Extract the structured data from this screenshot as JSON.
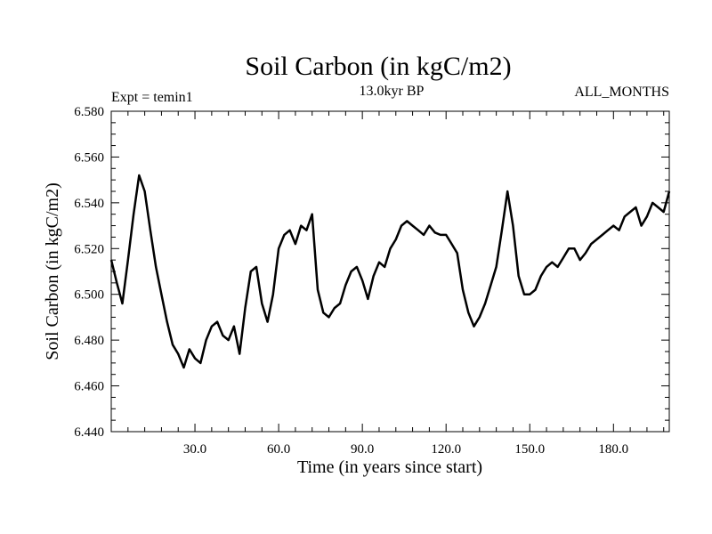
{
  "chart_data": {
    "type": "line",
    "title": "Soil Carbon (in kgC/m2)",
    "subtitle": "13.0kyr BP",
    "left_note": "Expt = temin1",
    "right_note": "ALL_MONTHS",
    "xlabel": "Time (in years since start)",
    "ylabel": "Soil Carbon (in kgC/m2)",
    "xlim": [
      0,
      200
    ],
    "ylim": [
      6.44,
      6.58
    ],
    "xticks": [
      30,
      60,
      90,
      120,
      150,
      180
    ],
    "xtick_labels": [
      "30.0",
      "60.0",
      "90.0",
      "120.0",
      "150.0",
      "180.0"
    ],
    "yticks": [
      6.44,
      6.46,
      6.48,
      6.5,
      6.52,
      6.54,
      6.56,
      6.58
    ],
    "ytick_labels": [
      "6.440",
      "6.460",
      "6.480",
      "6.500",
      "6.520",
      "6.540",
      "6.560",
      "6.580"
    ],
    "series": [
      {
        "name": "Soil Carbon",
        "color": "#000000",
        "x": [
          0,
          2,
          4,
          6,
          8,
          10,
          12,
          14,
          16,
          18,
          20,
          22,
          24,
          26,
          28,
          30,
          32,
          34,
          36,
          38,
          40,
          42,
          44,
          46,
          48,
          50,
          52,
          54,
          56,
          58,
          60,
          62,
          64,
          66,
          68,
          70,
          72,
          74,
          76,
          78,
          80,
          82,
          84,
          86,
          88,
          90,
          92,
          94,
          96,
          98,
          100,
          102,
          104,
          106,
          108,
          110,
          112,
          114,
          116,
          118,
          120,
          122,
          124,
          126,
          128,
          130,
          132,
          134,
          136,
          138,
          140,
          142,
          144,
          146,
          148,
          150,
          152,
          154,
          156,
          158,
          160,
          162,
          164,
          166,
          168,
          170,
          172,
          174,
          176,
          178,
          180,
          182,
          184,
          186,
          188,
          190,
          192,
          194,
          196,
          198,
          200
        ],
        "values": [
          6.515,
          6.505,
          6.496,
          6.515,
          6.535,
          6.552,
          6.545,
          6.528,
          6.512,
          6.5,
          6.488,
          6.478,
          6.474,
          6.468,
          6.476,
          6.472,
          6.47,
          6.48,
          6.486,
          6.488,
          6.482,
          6.48,
          6.486,
          6.474,
          6.494,
          6.51,
          6.512,
          6.496,
          6.488,
          6.5,
          6.52,
          6.526,
          6.528,
          6.522,
          6.53,
          6.528,
          6.535,
          6.502,
          6.492,
          6.49,
          6.494,
          6.496,
          6.504,
          6.51,
          6.512,
          6.506,
          6.498,
          6.508,
          6.514,
          6.512,
          6.52,
          6.524,
          6.53,
          6.532,
          6.53,
          6.528,
          6.526,
          6.53,
          6.527,
          6.526,
          6.526,
          6.522,
          6.518,
          6.502,
          6.492,
          6.486,
          6.49,
          6.496,
          6.504,
          6.512,
          6.528,
          6.545,
          6.53,
          6.508,
          6.5,
          6.5,
          6.502,
          6.508,
          6.512,
          6.514,
          6.512,
          6.516,
          6.52,
          6.52,
          6.515,
          6.518,
          6.522,
          6.524,
          6.526,
          6.528,
          6.53,
          6.528,
          6.534,
          6.536,
          6.538,
          6.53,
          6.534,
          6.54,
          6.538,
          6.536,
          6.545
        ]
      }
    ]
  }
}
